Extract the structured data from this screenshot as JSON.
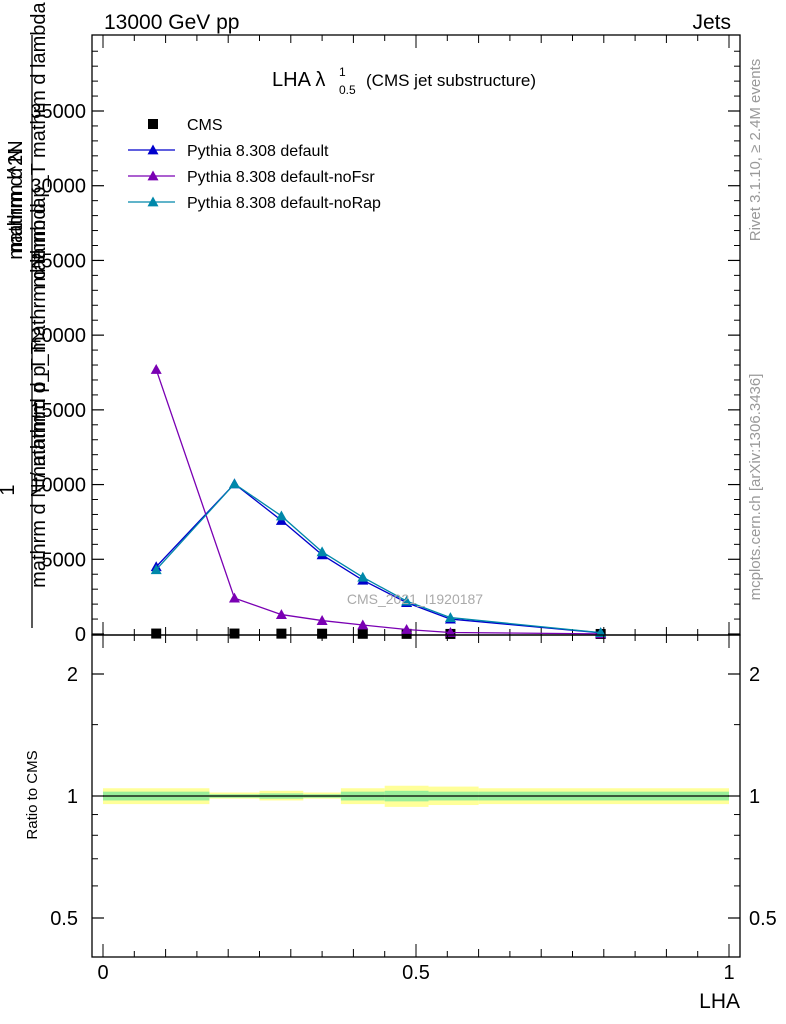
{
  "header": {
    "left_title": "13000 GeV pp",
    "right_title": "Jets",
    "plot_title_main": "LHA λ",
    "plot_title_sup": "1",
    "plot_title_sub": "0.5",
    "plot_title_suffix": "(CMS jet substructure)"
  },
  "side_labels": {
    "rivet": "Rivet 3.1.10, ≥ 2.4M events",
    "mcplots": "mcplots.cern.ch [arXiv:1306.3436]"
  },
  "watermark": "CMS_2021_I1920187",
  "ylabel_main_lines": [
    "mathrm d N",
    "mathrm d p_T mathrm d lambda",
    "mathrm d^2N",
    "mathrm d p_T mathrm d lambda",
    "1",
    "mathrm d N / mathrm d p_T"
  ],
  "ratio_ylabel": "Ratio to CMS",
  "xlabel": "LHA",
  "colors": {
    "cms": "#000000",
    "default": "#0000cc",
    "noFsr": "#7a00b3",
    "noRap": "#0088aa",
    "band_outer": "#ffff99",
    "band_inner": "#99ee99"
  },
  "chart_data": [
    {
      "type": "line",
      "panel": "main",
      "xlim": [
        0,
        1
      ],
      "ylim": [
        0,
        40000
      ],
      "yticks": [
        0,
        5000,
        10000,
        15000,
        20000,
        25000,
        30000,
        35000
      ],
      "ytick_labels": [
        "0",
        "5000",
        "10000",
        "15000",
        "20000",
        "25000",
        "30000",
        "35000"
      ],
      "legend_position": "top-left",
      "series": [
        {
          "name": "CMS",
          "marker": "square",
          "color_key": "cms",
          "x": [
            0.085,
            0.21,
            0.285,
            0.35,
            0.415,
            0.485,
            0.555,
            0.795
          ],
          "y": [
            30,
            30,
            25,
            20,
            15,
            10,
            5,
            2
          ]
        },
        {
          "name": "Pythia 8.308 default",
          "marker": "triangle",
          "color_key": "default",
          "x": [
            0.085,
            0.21,
            0.285,
            0.35,
            0.415,
            0.485,
            0.555,
            0.795
          ],
          "y": [
            4500,
            10050,
            7600,
            5300,
            3600,
            2100,
            1000,
            80
          ]
        },
        {
          "name": "Pythia 8.308 default-noFsr",
          "marker": "triangle",
          "color_key": "noFsr",
          "x": [
            0.085,
            0.21,
            0.285,
            0.35,
            0.415,
            0.485,
            0.555,
            0.795
          ],
          "y": [
            17700,
            2400,
            1300,
            900,
            600,
            300,
            100,
            10
          ]
        },
        {
          "name": "Pythia 8.308 default-noRap",
          "marker": "triangle",
          "color_key": "noRap",
          "x": [
            0.085,
            0.21,
            0.285,
            0.35,
            0.415,
            0.485,
            0.555,
            0.795
          ],
          "y": [
            4300,
            10050,
            7900,
            5500,
            3800,
            2200,
            1100,
            90
          ]
        }
      ]
    },
    {
      "type": "area",
      "panel": "ratio",
      "xlim": [
        0,
        1
      ],
      "ylim": [
        0.4,
        2.4
      ],
      "ylog": true,
      "yticks": [
        0.5,
        1,
        2
      ],
      "ytick_labels": [
        "0.5",
        "1",
        "2"
      ],
      "xticks": [
        0,
        0.5,
        1
      ],
      "xtick_labels": [
        "0",
        "0.5",
        "1"
      ],
      "reference_line": 1,
      "bins": [
        {
          "x0": 0.0,
          "x1": 0.17,
          "inner": [
            0.975,
            1.025
          ],
          "outer": [
            0.955,
            1.045
          ]
        },
        {
          "x0": 0.17,
          "x1": 0.25,
          "inner": [
            0.99,
            1.01
          ],
          "outer": [
            0.985,
            1.02
          ]
        },
        {
          "x0": 0.25,
          "x1": 0.32,
          "inner": [
            0.985,
            1.015
          ],
          "outer": [
            0.975,
            1.03
          ]
        },
        {
          "x0": 0.32,
          "x1": 0.38,
          "inner": [
            0.99,
            1.01
          ],
          "outer": [
            0.985,
            1.02
          ]
        },
        {
          "x0": 0.38,
          "x1": 0.45,
          "inner": [
            0.975,
            1.025
          ],
          "outer": [
            0.955,
            1.045
          ]
        },
        {
          "x0": 0.45,
          "x1": 0.52,
          "inner": [
            0.97,
            1.03
          ],
          "outer": [
            0.94,
            1.06
          ]
        },
        {
          "x0": 0.52,
          "x1": 0.6,
          "inner": [
            0.975,
            1.025
          ],
          "outer": [
            0.95,
            1.055
          ]
        },
        {
          "x0": 0.6,
          "x1": 1.0,
          "inner": [
            0.975,
            1.025
          ],
          "outer": [
            0.955,
            1.045
          ]
        }
      ]
    }
  ]
}
